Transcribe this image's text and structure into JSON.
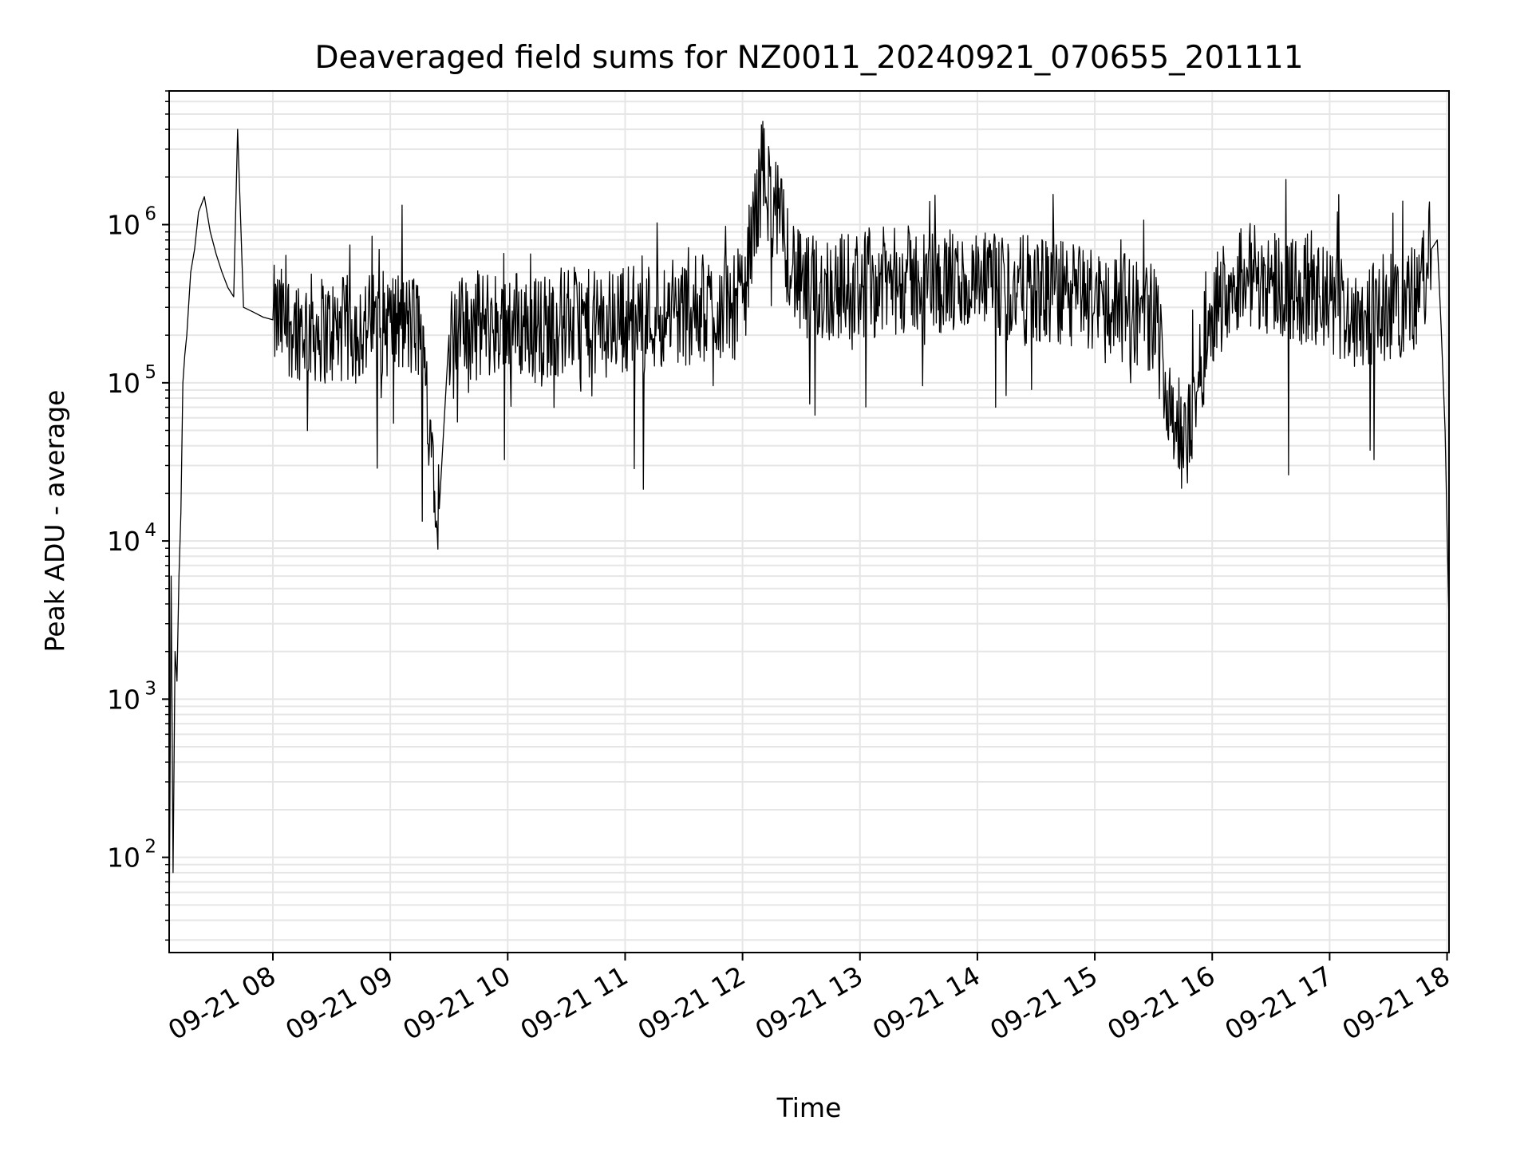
{
  "chart_data": {
    "type": "line",
    "title": "Deaveraged field sums for NZ0011_20240921_070655_201111",
    "xlabel": "Time",
    "ylabel": "Peak ADU - average",
    "y_scale": "log",
    "xlim": [
      "2024-09-21 07:07",
      "2024-09-21 18:01"
    ],
    "ylim": [
      25,
      7000000
    ],
    "grid": true,
    "line_color": "#000000",
    "grid_color": "#e6e6e6",
    "x_ticks": [
      "09-21 08",
      "09-21 09",
      "09-21 10",
      "09-21 11",
      "09-21 12",
      "09-21 13",
      "09-21 14",
      "09-21 15",
      "09-21 16",
      "09-21 17",
      "09-21 18"
    ],
    "y_ticks": [
      {
        "base": "10",
        "exp": "2",
        "value": 100
      },
      {
        "base": "10",
        "exp": "3",
        "value": 1000
      },
      {
        "base": "10",
        "exp": "4",
        "value": 10000
      },
      {
        "base": "10",
        "exp": "5",
        "value": 100000
      },
      {
        "base": "10",
        "exp": "6",
        "value": 1000000
      }
    ],
    "series": [
      {
        "x": [
          "2024-09-21 07:07",
          "2024-09-21 07:08",
          "2024-09-21 07:09",
          "2024-09-21 07:10",
          "2024-09-21 07:11",
          "2024-09-21 07:12",
          "2024-09-21 07:13",
          "2024-09-21 07:14",
          "2024-09-21 07:15",
          "2024-09-21 07:16",
          "2024-09-21 07:18",
          "2024-09-21 07:20",
          "2024-09-21 07:22",
          "2024-09-21 07:25",
          "2024-09-21 07:28",
          "2024-09-21 07:31",
          "2024-09-21 07:34",
          "2024-09-21 07:37",
          "2024-09-21 07:40",
          "2024-09-21 07:42",
          "2024-09-21 07:45",
          "2024-09-21 07:50",
          "2024-09-21 07:55",
          "2024-09-21 08:00",
          "2024-09-21 08:15",
          "2024-09-21 08:30",
          "2024-09-21 08:45",
          "2024-09-21 09:00",
          "2024-09-21 09:15",
          "2024-09-21 09:25",
          "2024-09-21 09:30",
          "2024-09-21 09:45",
          "2024-09-21 10:00",
          "2024-09-21 10:15",
          "2024-09-21 10:30",
          "2024-09-21 10:45",
          "2024-09-21 11:00",
          "2024-09-21 11:30",
          "2024-09-21 12:00",
          "2024-09-21 12:10",
          "2024-09-21 12:30",
          "2024-09-21 13:00",
          "2024-09-21 13:30",
          "2024-09-21 14:00",
          "2024-09-21 14:30",
          "2024-09-21 15:00",
          "2024-09-21 15:30",
          "2024-09-21 15:45",
          "2024-09-21 16:00",
          "2024-09-21 16:15",
          "2024-09-21 16:30",
          "2024-09-21 17:00",
          "2024-09-21 17:15",
          "2024-09-21 17:30",
          "2024-09-21 17:45",
          "2024-09-21 17:52",
          "2024-09-21 17:55",
          "2024-09-21 17:57",
          "2024-09-21 17:59",
          "2024-09-21 18:01"
        ],
        "y": [
          30,
          6000,
          80,
          2000,
          1300,
          6000,
          15000,
          100000,
          150000,
          200000,
          500000,
          700000,
          1200000,
          1500000,
          900000,
          650000,
          500000,
          400000,
          350000,
          4000000,
          300000,
          280000,
          260000,
          250000,
          230000,
          210000,
          220000,
          240000,
          220000,
          16000,
          200000,
          230000,
          250000,
          220000,
          250000,
          230000,
          260000,
          280000,
          320000,
          2200000,
          380000,
          420000,
          450000,
          400000,
          380000,
          340000,
          260000,
          35000,
          300000,
          500000,
          450000,
          320000,
          270000,
          300000,
          350000,
          700000,
          800000,
          220000,
          50000,
          3000
        ]
      }
    ]
  }
}
